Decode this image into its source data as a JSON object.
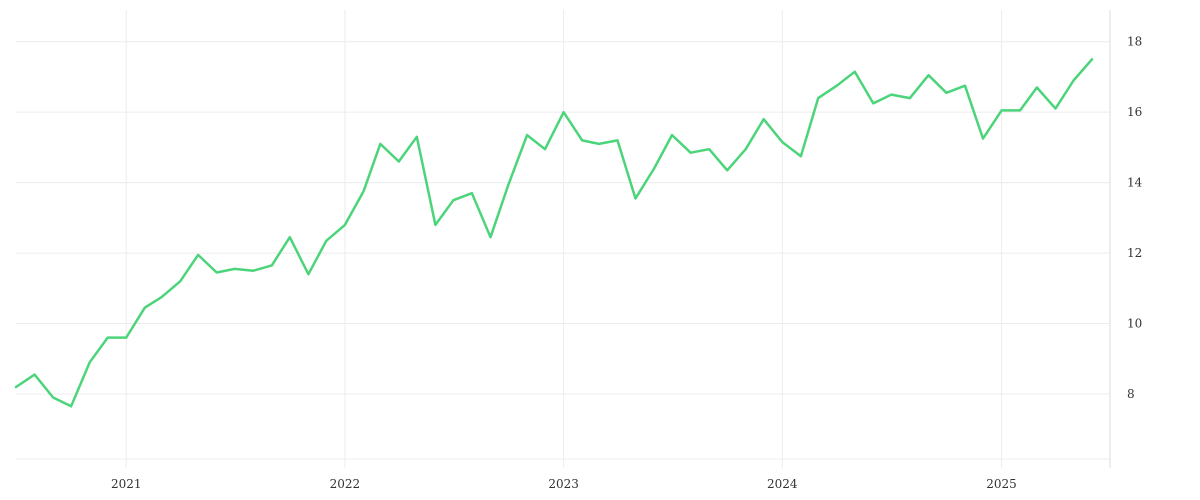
{
  "chart_data": {
    "type": "line",
    "title": "",
    "xlabel": "",
    "ylabel": "",
    "grid": true,
    "y_axis_side": "right",
    "x_ticks": [
      "2021",
      "2022",
      "2023",
      "2024",
      "2025"
    ],
    "y_ticks": [
      8,
      10,
      12,
      14,
      16,
      18
    ],
    "xlim": [
      "2020-07-01",
      "2025-07-01"
    ],
    "ylim": [
      5.9,
      18.9
    ],
    "colors": {
      "line": "#4cd47b"
    },
    "series": [
      {
        "x": [
          "2020-07-01",
          "2020-08-01",
          "2020-09-01",
          "2020-10-01",
          "2020-11-01",
          "2020-12-01",
          "2021-01-01",
          "2021-02-01",
          "2021-03-01",
          "2021-04-01",
          "2021-05-01",
          "2021-06-01",
          "2021-07-01",
          "2021-08-01",
          "2021-09-01",
          "2021-10-01",
          "2021-11-01",
          "2021-12-01",
          "2022-01-01",
          "2022-02-01",
          "2022-03-01",
          "2022-04-01",
          "2022-05-01",
          "2022-06-01",
          "2022-07-01",
          "2022-08-01",
          "2022-09-01",
          "2022-10-01",
          "2022-11-01",
          "2022-12-01",
          "2023-01-01",
          "2023-02-01",
          "2023-03-01",
          "2023-04-01",
          "2023-05-01",
          "2023-06-01",
          "2023-07-01",
          "2023-08-01",
          "2023-09-01",
          "2023-10-01",
          "2023-11-01",
          "2023-12-01",
          "2024-01-01",
          "2024-02-01",
          "2024-03-01",
          "2024-04-01",
          "2024-05-01",
          "2024-06-01",
          "2024-07-01",
          "2024-08-01",
          "2024-09-01",
          "2024-10-01",
          "2024-11-01",
          "2024-12-01",
          "2025-01-01",
          "2025-02-01",
          "2025-03-01",
          "2025-04-01",
          "2025-05-01",
          "2025-06-01"
        ],
        "y": [
          8.2,
          8.55,
          7.9,
          7.65,
          8.9,
          9.6,
          9.6,
          10.45,
          10.75,
          11.2,
          11.95,
          11.45,
          11.55,
          11.5,
          11.65,
          12.45,
          11.4,
          12.35,
          12.8,
          13.75,
          15.1,
          14.6,
          15.3,
          12.8,
          13.5,
          13.7,
          12.45,
          13.95,
          15.35,
          14.95,
          16.0,
          15.2,
          15.1,
          15.2,
          13.55,
          14.4,
          15.35,
          14.85,
          14.95,
          14.35,
          14.95,
          15.8,
          15.15,
          14.75,
          16.4,
          16.75,
          17.15,
          16.25,
          16.5,
          16.4,
          17.05,
          16.55,
          16.75,
          15.25,
          16.05,
          16.05,
          16.7,
          16.1,
          16.9,
          17.5
        ]
      }
    ]
  }
}
